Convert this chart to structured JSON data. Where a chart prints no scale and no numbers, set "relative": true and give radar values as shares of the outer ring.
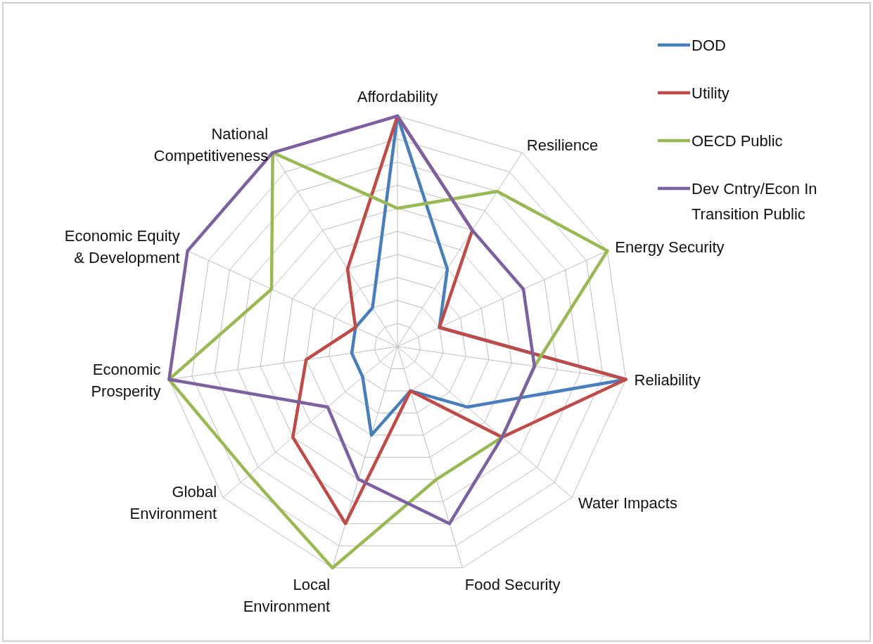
{
  "chart_data": {
    "type": "radar",
    "relative": true,
    "grid": true,
    "legend": "top right",
    "categories": [
      "Affordability",
      "Resilience",
      "Energy Security",
      "Reliability",
      "Water Impacts",
      "Food Security",
      "Local Environment",
      "Global Environment",
      "Economic Prosperity",
      "Economic Equity & Development",
      "National Competitiveness"
    ],
    "series": [
      {
        "name": "DOD",
        "color": "#4a7ebb",
        "values": [
          1.0,
          0.4,
          0.2,
          1.0,
          0.4,
          0.2,
          0.4,
          0.2,
          0.2,
          0.2,
          0.2
        ]
      },
      {
        "name": "Utility",
        "color": "#be4b48",
        "values": [
          1.0,
          0.6,
          0.2,
          1.0,
          0.6,
          0.2,
          0.8,
          0.6,
          0.4,
          0.2,
          0.4
        ]
      },
      {
        "name": "OECD Public",
        "color": "#98b954",
        "values": [
          0.6,
          0.8,
          1.0,
          0.6,
          0.6,
          0.6,
          1.0,
          0.85,
          1.0,
          0.6,
          1.0
        ]
      },
      {
        "name": "Dev Cntry/Econ In Transition Public",
        "color": "#7d60a0",
        "values": [
          1.0,
          0.6,
          0.6,
          0.6,
          0.6,
          0.8,
          0.6,
          0.4,
          1.0,
          1.0,
          1.0
        ]
      }
    ]
  }
}
